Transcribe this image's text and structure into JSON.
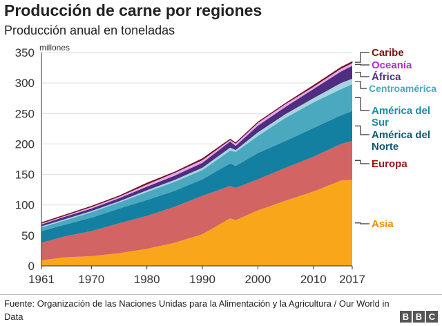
{
  "title": "Producción de carne por regiones",
  "subtitle": "Producción anual en toneladas",
  "source": "Fuente: Organización de las Naciones Unidas para la Alimentación y la Agricultura / Our World in Data",
  "logo": "BBC",
  "chart_data": {
    "type": "area",
    "stacked": true,
    "title": "Producción de carne por regiones",
    "subtitle": "Producción anual en toneladas",
    "ylabel": "millones",
    "ylim": [
      0,
      350
    ],
    "yticks": [
      0,
      50,
      100,
      150,
      200,
      250,
      300,
      350
    ],
    "xlim": [
      1961,
      2017
    ],
    "xticks": [
      1961,
      1970,
      1980,
      1990,
      2000,
      2010,
      2017
    ],
    "grid": true,
    "legend": "right",
    "x": [
      1961,
      1965,
      1970,
      1975,
      1980,
      1985,
      1990,
      1995,
      1996,
      2000,
      2005,
      2010,
      2015,
      2017
    ],
    "series": [
      {
        "name": "Asia",
        "color": "#f9a61a",
        "label_color": "#f08c00",
        "values": [
          9,
          14,
          16,
          21,
          28,
          38,
          52,
          78,
          75,
          91,
          107,
          122,
          140,
          141
        ]
      },
      {
        "name": "Europa",
        "color": "#d26464",
        "label_color": "#a01414",
        "values": [
          29,
          34,
          41,
          49,
          54,
          59,
          63,
          53,
          53,
          51,
          54,
          57,
          60,
          64
        ]
      },
      {
        "name": "América del Norte",
        "color": "#1380a1",
        "label_color": "#0f5a70",
        "values": [
          19,
          19,
          22,
          24,
          26,
          26,
          27,
          37,
          36,
          43,
          44,
          47,
          47,
          49
        ]
      },
      {
        "name": "América del Sur",
        "color": "#4aa8bf",
        "label_color": "#1a8aaa",
        "values": [
          6,
          7,
          9,
          10,
          13,
          15,
          15,
          21,
          23,
          28,
          38,
          42,
          43,
          44
        ]
      },
      {
        "name": "Centroamérica",
        "color": "#a9d3df",
        "label_color": "#4aa8bf",
        "values": [
          2,
          2,
          2,
          2,
          3,
          3,
          4,
          5,
          3,
          6,
          6,
          7,
          10,
          9
        ]
      },
      {
        "name": "África",
        "color": "#4f2d7f",
        "label_color": "#4f2d7f",
        "values": [
          3,
          4,
          4,
          5,
          6,
          7,
          8,
          10,
          7,
          11,
          12,
          15,
          19,
          21
        ]
      },
      {
        "name": "Oceanía",
        "color": "#eaa6f2",
        "label_color": "#b030d0",
        "values": [
          2,
          2,
          3,
          3,
          4,
          5,
          5,
          3,
          4,
          5,
          5,
          4,
          5,
          5
        ]
      },
      {
        "name": "Caribe",
        "color": "#6b1b1b",
        "label_color": "#7a1010",
        "values": [
          1,
          1,
          1,
          1,
          2,
          1,
          2,
          1,
          1,
          1,
          1,
          2,
          2,
          2
        ]
      }
    ]
  }
}
